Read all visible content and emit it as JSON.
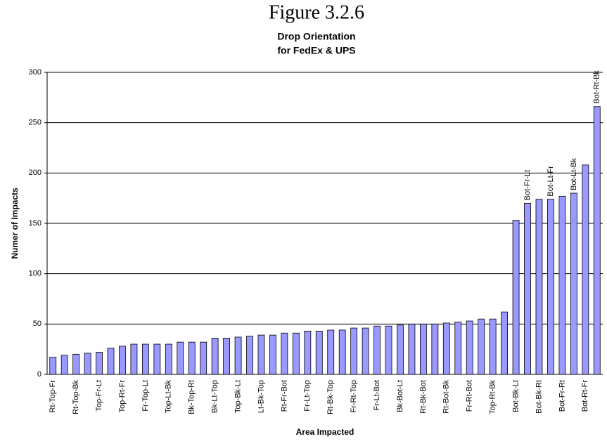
{
  "chart_data": {
    "type": "bar",
    "title": "Figure 3.2.6",
    "subtitle": [
      "Drop Orientation",
      "for FedEx & UPS"
    ],
    "y_label": "Numer of Impacts",
    "x_label": "Area Impacted",
    "categories": [
      "Rt-Top-Fr",
      null,
      "Rt-Top-Bk",
      null,
      "Top-Fr-Lt",
      null,
      "Top-Rt-Fr",
      null,
      "Fr-Top-Lt",
      null,
      "Top-Lt-Bk",
      null,
      "Bk-Top-Rt",
      null,
      "Bk-Lt-Top",
      null,
      "Top-Bk-Lt",
      null,
      "Lt-Bk-Top",
      null,
      "Rt-Fr-Bot",
      null,
      "Fr-Lt-Top",
      null,
      "Rt-Bk-Top",
      null,
      "Fr-Rt-Top",
      null,
      "Fr-Lt-Bot",
      null,
      "Bk-Bot-Lt",
      null,
      "Rt-Bk-Bot",
      null,
      "Rt-Bot-Bk",
      null,
      "Fr-Rt-Bot",
      null,
      "Top-Rt-Bk",
      null,
      "Bot-Bk-Lt",
      "Bot-Fr-Lt",
      "Bot-Bk-Rt",
      "Bot-Lt-Fr",
      "Bot-Fr-Rt",
      "Bot-Lt-Bk",
      "Bot-Rt-Fr",
      "Bot-Rt-Bk"
    ],
    "bar_labels": [
      null,
      null,
      null,
      null,
      null,
      null,
      null,
      null,
      null,
      null,
      null,
      null,
      null,
      null,
      null,
      null,
      null,
      null,
      null,
      null,
      null,
      null,
      null,
      null,
      null,
      null,
      null,
      null,
      null,
      null,
      null,
      null,
      null,
      null,
      null,
      null,
      null,
      null,
      null,
      null,
      null,
      "Bot-Fr-Lt",
      null,
      "Bot-Lt-Fr",
      null,
      "Bot-Lt-Bk",
      null,
      "Bot-Rt-Bk"
    ],
    "values": [
      17,
      19,
      20,
      21,
      22,
      26,
      28,
      30,
      30,
      30,
      30,
      32,
      32,
      32,
      36,
      36,
      37,
      38,
      39,
      39,
      41,
      41,
      43,
      43,
      44,
      44,
      46,
      46,
      48,
      48,
      49,
      50,
      50,
      50,
      51,
      52,
      53,
      55,
      55,
      62,
      153,
      170,
      174,
      174,
      177,
      180,
      208,
      266
    ],
    "color": "#9999ff",
    "ylim": [
      0,
      300
    ],
    "yticks": [
      0,
      50,
      100,
      150,
      200,
      250,
      300
    ],
    "grid": true
  }
}
